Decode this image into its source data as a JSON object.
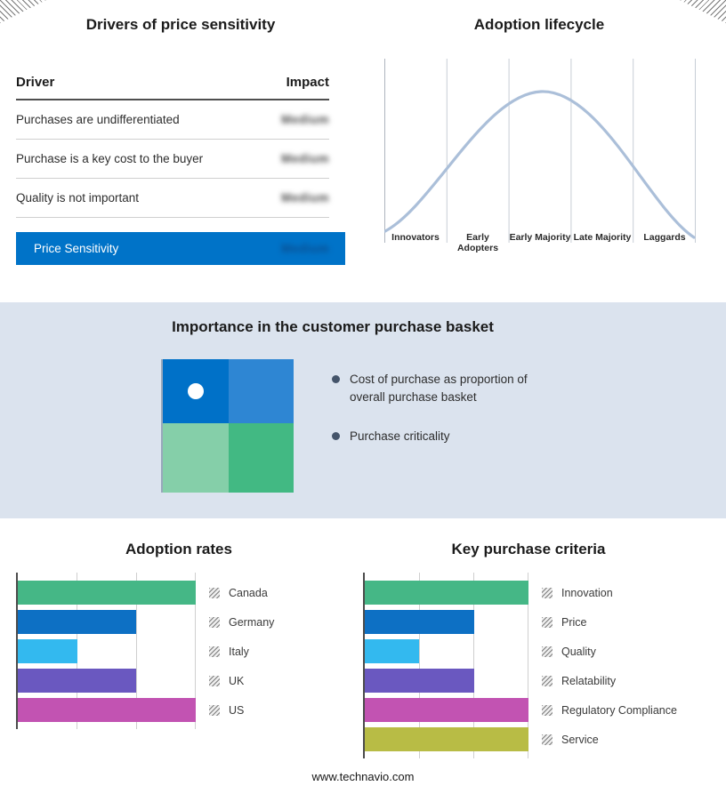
{
  "page": {
    "footer_url": "www.technavio.com"
  },
  "drivers": {
    "title": "Drivers of price sensitivity",
    "columns": {
      "driver": "Driver",
      "impact": "Impact"
    },
    "rows": [
      {
        "driver": "Purchases are undifferentiated",
        "impact": "Medium"
      },
      {
        "driver": "Purchase is a key cost to the buyer",
        "impact": "Medium"
      },
      {
        "driver": "Quality is not important",
        "impact": "Medium"
      }
    ],
    "highlight": {
      "label": "Price Sensitivity",
      "impact": "Medium",
      "bar_color": "#0073c8"
    }
  },
  "basket": {
    "title": "Importance in the customer purchase basket",
    "band_color": "#dbe3ee",
    "bullets": [
      "Cost of purchase as proportion of overall purchase basket",
      "Purchase criticality"
    ],
    "bullet_color": "#44546a",
    "quadrant": {
      "top_left": "#0071c8",
      "top_right": "#2e86d3",
      "bottom_left": "#85cfa9",
      "bottom_right": "#42b983",
      "marker": "#ffffff"
    }
  },
  "chart_data": [
    {
      "id": "adoption_lifecycle",
      "type": "line",
      "title": "Adoption lifecycle",
      "x": [
        "Innovators",
        "Early Adopters",
        "Early Majority",
        "Late Majority",
        "Laggards"
      ],
      "shape": "bell curve rising from Innovators, peaking at Early Majority, falling to Laggards",
      "curve_color": "#abbfd9",
      "grid": true,
      "legend_position": "none"
    },
    {
      "id": "adoption_rates",
      "type": "bar",
      "title": "Adoption rates",
      "orientation": "horizontal",
      "xlim": [
        0,
        3
      ],
      "xmax": 3,
      "grid": true,
      "legend_position": "right",
      "series": [
        {
          "label": "Canada",
          "value": 3,
          "color": "#45b786"
        },
        {
          "label": "Germany",
          "value": 2,
          "color": "#0d70c4"
        },
        {
          "label": "Italy",
          "value": 1,
          "color": "#33b9ef"
        },
        {
          "label": "UK",
          "value": 2,
          "color": "#6a58c0"
        },
        {
          "label": "US",
          "value": 3,
          "color": "#c253b2"
        }
      ]
    },
    {
      "id": "key_purchase_criteria",
      "type": "bar",
      "title": "Key purchase criteria",
      "orientation": "horizontal",
      "xlim": [
        0,
        3
      ],
      "xmax": 3,
      "grid": true,
      "legend_position": "right",
      "series": [
        {
          "label": "Innovation",
          "value": 3,
          "color": "#45b786"
        },
        {
          "label": "Price",
          "value": 2,
          "color": "#0d70c4"
        },
        {
          "label": "Quality",
          "value": 1,
          "color": "#33b9ef"
        },
        {
          "label": "Relatability",
          "value": 2,
          "color": "#6a58c0"
        },
        {
          "label": "Regulatory Compliance",
          "value": 3,
          "color": "#c253b2"
        },
        {
          "label": "Service",
          "value": 3,
          "color": "#b8bc45"
        }
      ]
    }
  ]
}
